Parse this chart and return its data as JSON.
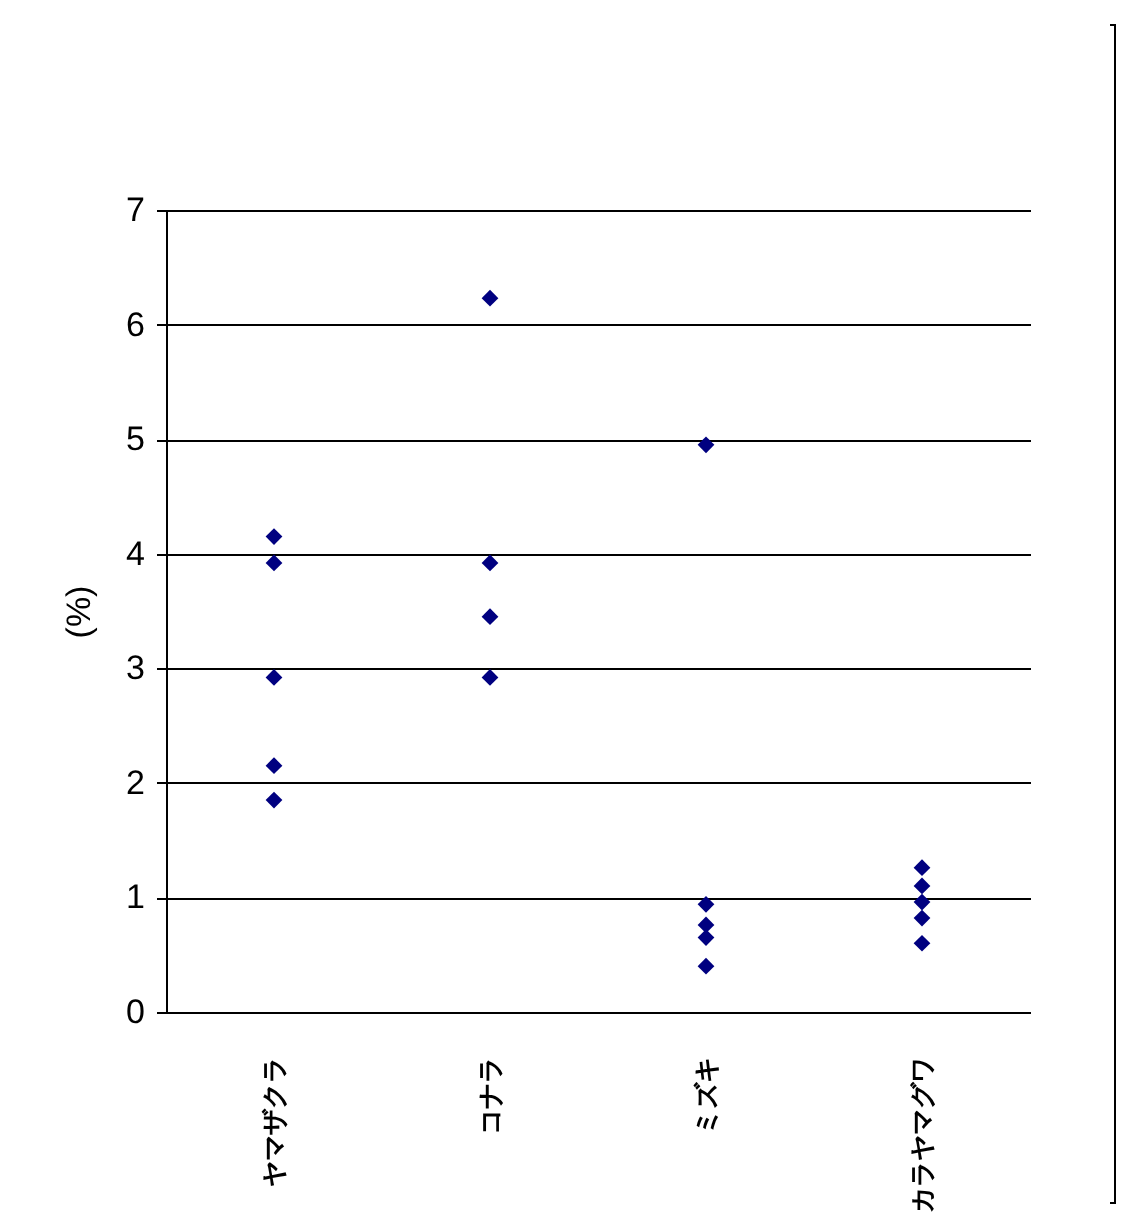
{
  "chart_data": {
    "type": "scatter",
    "ylabel": "(%)",
    "categories": [
      "ヤマザクラ",
      "コナラ",
      "ミズキ",
      "カラヤマグワ"
    ],
    "series": [
      {
        "color": "#000080",
        "x": [
          "ヤマザクラ",
          "ヤマザクラ",
          "ヤマザクラ",
          "ヤマザクラ",
          "ヤマザクラ",
          "コナラ",
          "コナラ",
          "コナラ",
          "コナラ",
          "ミズキ",
          "ミズキ",
          "ミズキ",
          "ミズキ",
          "ミズキ",
          "カラヤマグワ",
          "カラヤマグワ",
          "カラヤマグワ",
          "カラヤマグワ",
          "カラヤマグワ"
        ],
        "values": [
          4.15,
          3.92,
          2.92,
          2.15,
          1.85,
          6.23,
          3.92,
          3.45,
          2.92,
          4.95,
          0.94,
          0.76,
          0.65,
          0.4,
          1.26,
          1.1,
          0.96,
          0.82,
          0.6
        ]
      }
    ],
    "ylim": [
      0,
      7
    ],
    "yticks": [
      0,
      1,
      2,
      3,
      4,
      5,
      6,
      7
    ],
    "grid": "y",
    "marker": "diamond"
  }
}
